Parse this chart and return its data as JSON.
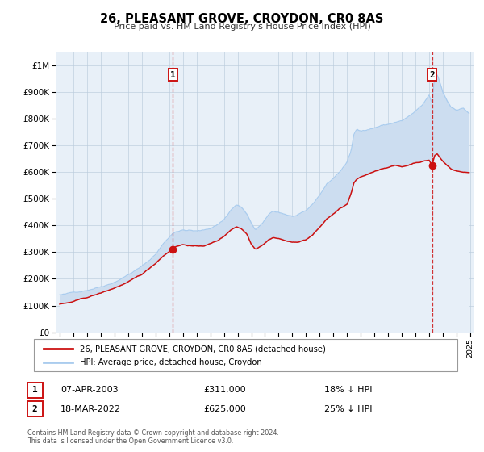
{
  "title": "26, PLEASANT GROVE, CROYDON, CR0 8AS",
  "subtitle": "Price paid vs. HM Land Registry's House Price Index (HPI)",
  "xlim": [
    1994.7,
    2025.3
  ],
  "ylim": [
    0,
    1050000
  ],
  "yticks": [
    0,
    100000,
    200000,
    300000,
    400000,
    500000,
    600000,
    700000,
    800000,
    900000,
    1000000
  ],
  "ytick_labels": [
    "£0",
    "£100K",
    "£200K",
    "£300K",
    "£400K",
    "£500K",
    "£600K",
    "£700K",
    "£800K",
    "£900K",
    "£1M"
  ],
  "xticks": [
    1995,
    1996,
    1997,
    1998,
    1999,
    2000,
    2001,
    2002,
    2003,
    2004,
    2005,
    2006,
    2007,
    2008,
    2009,
    2010,
    2011,
    2012,
    2013,
    2014,
    2015,
    2016,
    2017,
    2018,
    2019,
    2020,
    2021,
    2022,
    2023,
    2024,
    2025
  ],
  "hpi_color": "#aaccee",
  "price_color": "#cc1111",
  "fill_color": "#ccddf0",
  "background_color": "#e8f0f8",
  "grid_color": "#bbccdd",
  "marker1_date": 2003.27,
  "marker1_price": 311000,
  "marker1_label": "1",
  "marker2_date": 2022.21,
  "marker2_price": 625000,
  "marker2_label": "2",
  "legend_line1": "26, PLEASANT GROVE, CROYDON, CR0 8AS (detached house)",
  "legend_line2": "HPI: Average price, detached house, Croydon",
  "table_row1_num": "1",
  "table_row1_date": "07-APR-2003",
  "table_row1_price": "£311,000",
  "table_row1_note": "18% ↓ HPI",
  "table_row2_num": "2",
  "table_row2_date": "18-MAR-2022",
  "table_row2_price": "£625,000",
  "table_row2_note": "25% ↓ HPI",
  "footer1": "Contains HM Land Registry data © Crown copyright and database right 2024.",
  "footer2": "This data is licensed under the Open Government Licence v3.0."
}
